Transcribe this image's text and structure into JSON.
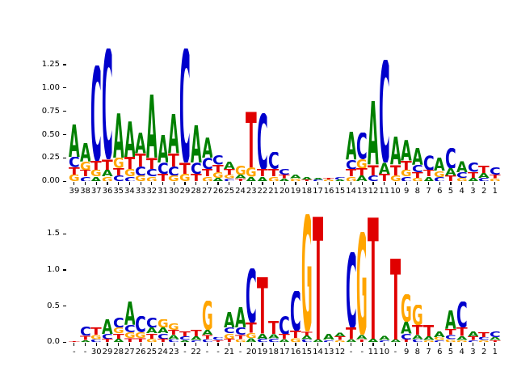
{
  "figure": {
    "background": "#ffffff",
    "description": "Two aligned DNA sequence logos (top and bottom subplots)"
  },
  "letter_colors": {
    "A": "#008000",
    "C": "#0000cc",
    "G": "#ffa500",
    "T": "#e00000"
  },
  "chart_data": [
    {
      "type": "sequence_logo",
      "title": "",
      "xlabel": "",
      "ylabel": "",
      "legend": null,
      "grid": false,
      "y_tick_labels": [
        "0.00",
        "0.25",
        "0.50",
        "0.75",
        "1.00",
        "1.25"
      ],
      "y_tick_values": [
        0,
        0.25,
        0.5,
        0.75,
        1.0,
        1.25
      ],
      "ylim": [
        0,
        1.45
      ],
      "x_tick_labels": [
        "39",
        "38",
        "37",
        "36",
        "35",
        "34",
        "33",
        "32",
        "31",
        "30",
        "29",
        "28",
        "27",
        "26",
        "25",
        "24",
        "23",
        "22",
        "21",
        "20",
        "19",
        "18",
        "17",
        "16",
        "15",
        "14",
        "13",
        "12",
        "11",
        "10",
        "9",
        "8",
        "7",
        "6",
        "5",
        "4",
        "3",
        "2",
        "1"
      ],
      "columns": [
        [
          [
            "G",
            0.07
          ],
          [
            "T",
            0.08
          ],
          [
            "C",
            0.11
          ],
          [
            "A",
            0.35
          ]
        ],
        [
          [
            "C",
            0.05
          ],
          [
            "T",
            0.07
          ],
          [
            "G",
            0.09
          ],
          [
            "A",
            0.2
          ]
        ],
        [
          [
            "A",
            0.05
          ],
          [
            "G",
            0.07
          ],
          [
            "T",
            0.1
          ],
          [
            "C",
            1.02
          ]
        ],
        [
          [
            "G",
            0.05
          ],
          [
            "A",
            0.07
          ],
          [
            "T",
            0.12
          ],
          [
            "C",
            1.18
          ]
        ],
        [
          [
            "C",
            0.06
          ],
          [
            "T",
            0.08
          ],
          [
            "G",
            0.11
          ],
          [
            "A",
            0.48
          ]
        ],
        [
          [
            "C",
            0.05
          ],
          [
            "G",
            0.08
          ],
          [
            "T",
            0.13
          ],
          [
            "A",
            0.38
          ]
        ],
        [
          [
            "G",
            0.06
          ],
          [
            "C",
            0.1
          ],
          [
            "T",
            0.14
          ],
          [
            "A",
            0.22
          ]
        ],
        [
          [
            "G",
            0.05
          ],
          [
            "C",
            0.08
          ],
          [
            "T",
            0.12
          ],
          [
            "A",
            0.68
          ]
        ],
        [
          [
            "T",
            0.08
          ],
          [
            "C",
            0.12
          ],
          [
            "A",
            0.3
          ]
        ],
        [
          [
            "G",
            0.06
          ],
          [
            "C",
            0.1
          ],
          [
            "T",
            0.14
          ],
          [
            "A",
            0.42
          ]
        ],
        [
          [
            "G",
            0.08
          ],
          [
            "T",
            0.12
          ],
          [
            "C",
            1.22
          ]
        ],
        [
          [
            "T",
            0.08
          ],
          [
            "C",
            0.12
          ],
          [
            "A",
            0.4
          ]
        ],
        [
          [
            "G",
            0.05
          ],
          [
            "T",
            0.08
          ],
          [
            "C",
            0.12
          ],
          [
            "A",
            0.22
          ]
        ],
        [
          [
            "A",
            0.04
          ],
          [
            "G",
            0.06
          ],
          [
            "T",
            0.08
          ],
          [
            "C",
            0.1
          ]
        ],
        [
          [
            "C",
            0.03
          ],
          [
            "G",
            0.04
          ],
          [
            "T",
            0.06
          ],
          [
            "A",
            0.08
          ]
        ],
        [
          [
            "T",
            0.03
          ],
          [
            "A",
            0.04
          ],
          [
            "G",
            0.1
          ]
        ],
        [
          [
            "A",
            0.05
          ],
          [
            "G",
            0.1
          ],
          [
            "T",
            0.6
          ]
        ],
        [
          [
            "A",
            0.05
          ],
          [
            "T",
            0.08
          ],
          [
            "C",
            0.6
          ]
        ],
        [
          [
            "G",
            0.05
          ],
          [
            "T",
            0.08
          ],
          [
            "C",
            0.18
          ]
        ],
        [
          [
            "A",
            0.03
          ],
          [
            "T",
            0.04
          ],
          [
            "C",
            0.06
          ]
        ],
        [
          [
            "G",
            0.03
          ],
          [
            "A",
            0.04
          ]
        ],
        [
          [
            "T",
            0.02
          ],
          [
            "A",
            0.03
          ]
        ],
        [
          [
            "C",
            0.02
          ],
          [
            "A",
            0.02
          ]
        ],
        [
          [
            "G",
            0.02
          ],
          [
            "T",
            0.02
          ]
        ],
        [
          [
            "A",
            0.02
          ],
          [
            "C",
            0.03
          ]
        ],
        [
          [
            "G",
            0.05
          ],
          [
            "T",
            0.08
          ],
          [
            "C",
            0.1
          ],
          [
            "A",
            0.3
          ]
        ],
        [
          [
            "A",
            0.06
          ],
          [
            "T",
            0.08
          ],
          [
            "G",
            0.1
          ],
          [
            "C",
            0.28
          ]
        ],
        [
          [
            "C",
            0.06
          ],
          [
            "T",
            0.12
          ],
          [
            "A",
            0.68
          ]
        ],
        [
          [
            "T",
            0.08
          ],
          [
            "A",
            0.12
          ],
          [
            "C",
            1.1
          ]
        ],
        [
          [
            "G",
            0.06
          ],
          [
            "T",
            0.12
          ],
          [
            "A",
            0.3
          ]
        ],
        [
          [
            "C",
            0.05
          ],
          [
            "G",
            0.07
          ],
          [
            "T",
            0.1
          ],
          [
            "A",
            0.22
          ]
        ],
        [
          [
            "G",
            0.04
          ],
          [
            "T",
            0.06
          ],
          [
            "C",
            0.08
          ],
          [
            "A",
            0.18
          ]
        ],
        [
          [
            "A",
            0.05
          ],
          [
            "T",
            0.07
          ],
          [
            "C",
            0.16
          ]
        ],
        [
          [
            "C",
            0.05
          ],
          [
            "G",
            0.06
          ],
          [
            "A",
            0.14
          ]
        ],
        [
          [
            "T",
            0.06
          ],
          [
            "A",
            0.08
          ],
          [
            "C",
            0.22
          ]
        ],
        [
          [
            "G",
            0.04
          ],
          [
            "C",
            0.06
          ],
          [
            "A",
            0.12
          ]
        ],
        [
          [
            "A",
            0.04
          ],
          [
            "T",
            0.06
          ],
          [
            "C",
            0.1
          ]
        ],
        [
          [
            "C",
            0.04
          ],
          [
            "A",
            0.05
          ],
          [
            "T",
            0.08
          ]
        ],
        [
          [
            "G",
            0.03
          ],
          [
            "T",
            0.04
          ],
          [
            "C",
            0.08
          ]
        ]
      ]
    },
    {
      "type": "sequence_logo",
      "title": "",
      "xlabel": "",
      "ylabel": "",
      "legend": null,
      "grid": false,
      "y_tick_labels": [
        "0.0",
        "0.5",
        "1.0",
        "1.5"
      ],
      "y_tick_values": [
        0,
        0.5,
        1.0,
        1.5
      ],
      "ylim": [
        0,
        1.85
      ],
      "x_tick_labels": [
        "-",
        "-",
        "30",
        "29",
        "28",
        "27",
        "26",
        "25",
        "24",
        "23",
        "-",
        "22",
        "-",
        "-",
        "21",
        "-",
        "20",
        "19",
        "18",
        "17",
        "16",
        "15",
        "14",
        "13",
        "12",
        "-",
        "-",
        "11",
        "10",
        "-",
        "9",
        "8",
        "7",
        "6",
        "5",
        "4",
        "3",
        "2",
        "1"
      ],
      "columns": [
        [
          [
            "T",
            0.02
          ]
        ],
        [
          [
            "A",
            0.03
          ],
          [
            "T",
            0.06
          ],
          [
            "C",
            0.13
          ]
        ],
        [
          [
            "C",
            0.04
          ],
          [
            "G",
            0.06
          ],
          [
            "T",
            0.1
          ]
        ],
        [
          [
            "T",
            0.05
          ],
          [
            "C",
            0.07
          ],
          [
            "A",
            0.2
          ]
        ],
        [
          [
            "A",
            0.05
          ],
          [
            "T",
            0.07
          ],
          [
            "G",
            0.08
          ],
          [
            "C",
            0.14
          ]
        ],
        [
          [
            "T",
            0.06
          ],
          [
            "G",
            0.08
          ],
          [
            "C",
            0.1
          ],
          [
            "A",
            0.32
          ]
        ],
        [
          [
            "T",
            0.06
          ],
          [
            "G",
            0.08
          ],
          [
            "C",
            0.22
          ]
        ],
        [
          [
            "G",
            0.05
          ],
          [
            "T",
            0.07
          ],
          [
            "A",
            0.08
          ],
          [
            "C",
            0.14
          ]
        ],
        [
          [
            "T",
            0.05
          ],
          [
            "C",
            0.07
          ],
          [
            "A",
            0.08
          ],
          [
            "G",
            0.12
          ]
        ],
        [
          [
            "C",
            0.04
          ],
          [
            "A",
            0.06
          ],
          [
            "T",
            0.07
          ],
          [
            "G",
            0.09
          ]
        ],
        [
          [
            "A",
            0.03
          ],
          [
            "C",
            0.05
          ],
          [
            "T",
            0.07
          ]
        ],
        [
          [
            "C",
            0.03
          ],
          [
            "A",
            0.05
          ],
          [
            "T",
            0.09
          ]
        ],
        [
          [
            "C",
            0.04
          ],
          [
            "T",
            0.06
          ],
          [
            "A",
            0.07
          ],
          [
            "G",
            0.4
          ]
        ],
        [
          [
            "T",
            0.03
          ],
          [
            "C",
            0.04
          ]
        ],
        [
          [
            "T",
            0.05
          ],
          [
            "G",
            0.07
          ],
          [
            "C",
            0.08
          ],
          [
            "A",
            0.22
          ]
        ],
        [
          [
            "G",
            0.04
          ],
          [
            "T",
            0.06
          ],
          [
            "C",
            0.1
          ],
          [
            "A",
            0.28
          ]
        ],
        [
          [
            "A",
            0.06
          ],
          [
            "G",
            0.07
          ],
          [
            "T",
            0.14
          ],
          [
            "C",
            0.75
          ]
        ],
        [
          [
            "C",
            0.05
          ],
          [
            "A",
            0.07
          ],
          [
            "T",
            0.78
          ]
        ],
        [
          [
            "C",
            0.05
          ],
          [
            "A",
            0.06
          ],
          [
            "T",
            0.18
          ]
        ],
        [
          [
            "A",
            0.04
          ],
          [
            "T",
            0.07
          ],
          [
            "C",
            0.25
          ]
        ],
        [
          [
            "G",
            0.06
          ],
          [
            "T",
            0.1
          ],
          [
            "C",
            0.55
          ]
        ],
        [
          [
            "C",
            0.04
          ],
          [
            "A",
            0.05
          ],
          [
            "T",
            0.06
          ],
          [
            "G",
            1.62
          ]
        ],
        [
          [
            "A",
            0.04
          ],
          [
            "T",
            1.7
          ]
        ],
        [
          [
            "C",
            0.03
          ],
          [
            "A",
            0.08
          ]
        ],
        [
          [
            "G",
            0.03
          ],
          [
            "T",
            0.05
          ],
          [
            "A",
            0.06
          ]
        ],
        [
          [
            "A",
            0.04
          ],
          [
            "T",
            0.16
          ],
          [
            "C",
            1.05
          ]
        ],
        [
          [
            "T",
            0.04
          ],
          [
            "A",
            0.06
          ],
          [
            "G",
            1.42
          ]
        ],
        [
          [
            "A",
            0.05
          ],
          [
            "T",
            1.68
          ]
        ],
        [
          [
            "C",
            0.03
          ],
          [
            "A",
            0.06
          ]
        ],
        [
          [
            "A",
            0.04
          ],
          [
            "T",
            1.12
          ]
        ],
        [
          [
            "T",
            0.04
          ],
          [
            "C",
            0.08
          ],
          [
            "A",
            0.16
          ],
          [
            "G",
            0.38
          ]
        ],
        [
          [
            "C",
            0.04
          ],
          [
            "A",
            0.06
          ],
          [
            "T",
            0.14
          ],
          [
            "G",
            0.28
          ]
        ],
        [
          [
            "G",
            0.03
          ],
          [
            "A",
            0.05
          ],
          [
            "T",
            0.16
          ]
        ],
        [
          [
            "C",
            0.03
          ],
          [
            "G",
            0.04
          ],
          [
            "A",
            0.08
          ]
        ],
        [
          [
            "G",
            0.04
          ],
          [
            "C",
            0.06
          ],
          [
            "T",
            0.08
          ],
          [
            "A",
            0.26
          ]
        ],
        [
          [
            "G",
            0.03
          ],
          [
            "A",
            0.05
          ],
          [
            "T",
            0.12
          ],
          [
            "C",
            0.36
          ]
        ],
        [
          [
            "C",
            0.03
          ],
          [
            "T",
            0.05
          ],
          [
            "A",
            0.07
          ]
        ],
        [
          [
            "G",
            0.03
          ],
          [
            "C",
            0.04
          ],
          [
            "T",
            0.07
          ]
        ],
        [
          [
            "T",
            0.03
          ],
          [
            "A",
            0.04
          ],
          [
            "C",
            0.08
          ]
        ]
      ]
    }
  ]
}
